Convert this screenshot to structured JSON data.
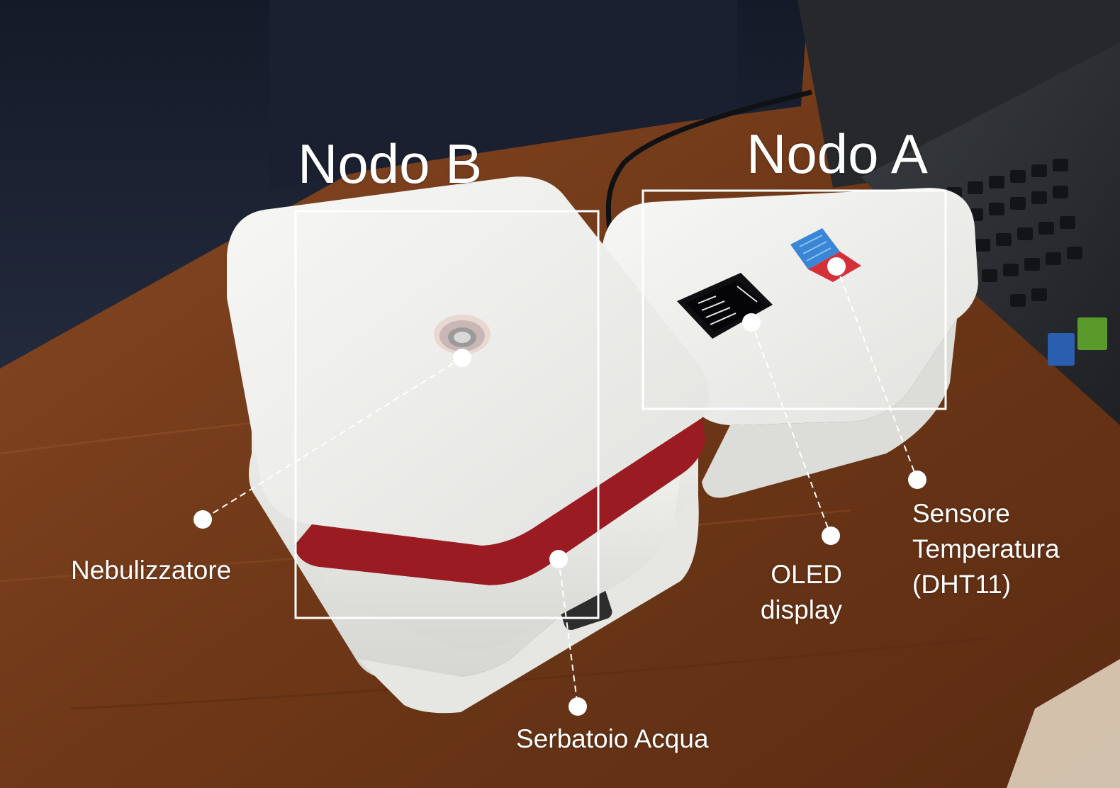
{
  "nodes": {
    "b_title": "Nodo B",
    "a_title": "Nodo A"
  },
  "callouts": {
    "nebulizer": "Nebulizzatore",
    "water_tank": "Serbatoio Acqua",
    "oled_line1": "OLED",
    "oled_line2": "display",
    "sensor_line1": "Sensore",
    "sensor_line2": "Temperatura",
    "sensor_line3": "(DHT11)"
  },
  "colors": {
    "wall": "#1c2233",
    "desk": "#7a3f1e",
    "box": "#f2f2f0",
    "accent_red": "#9b1b22",
    "sensor_blue": "#3a86d6",
    "annotation": "#ffffff"
  }
}
